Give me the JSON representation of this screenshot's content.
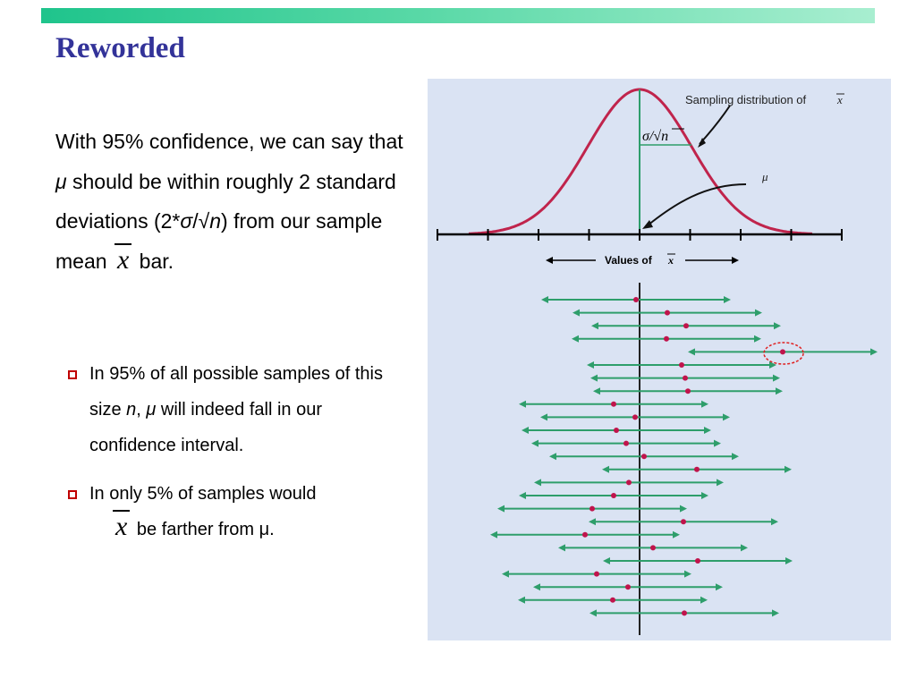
{
  "slide": {
    "title": "Reworded"
  },
  "main_text": {
    "part1": "With 95% confidence, we can say that ",
    "mu": "μ",
    "part2": " should be within roughly 2 standard deviations (2*",
    "sigma": "σ",
    "slash": "/",
    "sqrt": "√",
    "n": "n",
    "part3": ") from our sample mean ",
    "xbar": "x",
    "part4": " bar."
  },
  "bullets": [
    {
      "part1": "In 95% of all possible samples of this size ",
      "n": "n",
      "comma": ", ",
      "mu": "μ",
      "part2": " will indeed fall in our confidence interval."
    },
    {
      "line1": "In only 5% of samples would",
      "xbar": "x",
      "line2": " be farther from μ."
    }
  ],
  "figure": {
    "sampling_label": "Sampling distribution of",
    "xbar_symbol": "x",
    "se_sigma": "σ",
    "se_slash": "/",
    "se_sqrt": "√",
    "se_n": "n",
    "mu_label": "μ",
    "axis_label": "Values of",
    "colors": {
      "background": "#dae3f3",
      "curve": "#c0244c",
      "mean_line": "#2e9e6b",
      "interval": "#2e9e6b",
      "dot": "#c0144c",
      "highlight": "#e02020"
    },
    "sample_means": [
      -4,
      31,
      52,
      30,
      160,
      47,
      51,
      54,
      -29,
      -5,
      -26,
      -15,
      5,
      64,
      -12,
      -29,
      -53,
      49,
      -61,
      15,
      65,
      -48,
      -13,
      -30,
      50
    ],
    "interval_half_width": 106
  }
}
